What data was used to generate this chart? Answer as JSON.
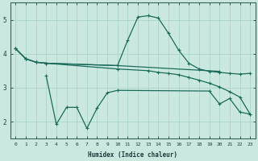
{
  "xlabel": "Humidex (Indice chaleur)",
  "background_color": "#cbe8e0",
  "grid_color": "#a8d5c8",
  "line_color": "#1a6b5a",
  "xlim": [
    -0.5,
    23.5
  ],
  "ylim": [
    1.5,
    5.5
  ],
  "yticks": [
    2,
    3,
    4,
    5
  ],
  "xticks": [
    0,
    1,
    2,
    3,
    4,
    5,
    6,
    7,
    8,
    9,
    10,
    11,
    12,
    13,
    14,
    15,
    16,
    17,
    18,
    19,
    20,
    21,
    22,
    23
  ],
  "line1_x": [
    0,
    1,
    2,
    3,
    10,
    20
  ],
  "line1_y": [
    4.15,
    3.85,
    3.75,
    3.72,
    3.65,
    3.48
  ],
  "line2_x": [
    0,
    1,
    2,
    3,
    10,
    13,
    14,
    15,
    16,
    17,
    18,
    19,
    20,
    21,
    22,
    23
  ],
  "line2_y": [
    4.15,
    3.85,
    3.75,
    3.72,
    3.55,
    3.5,
    3.45,
    3.42,
    3.38,
    3.3,
    3.22,
    3.13,
    3.02,
    2.88,
    2.72,
    2.22
  ],
  "line3_x": [
    0,
    1,
    2,
    3,
    10,
    11,
    12,
    13,
    14,
    15,
    16,
    17,
    18,
    19,
    20,
    21,
    22,
    23
  ],
  "line3_y": [
    4.15,
    3.85,
    3.75,
    3.72,
    3.65,
    4.4,
    5.08,
    5.12,
    5.05,
    4.6,
    4.1,
    3.72,
    3.55,
    3.48,
    3.45,
    3.42,
    3.4,
    3.42
  ],
  "line4_x": [
    3,
    4,
    5,
    6,
    7,
    8,
    9,
    10,
    19,
    20,
    21,
    22,
    23
  ],
  "line4_y": [
    3.35,
    1.92,
    2.42,
    2.42,
    1.8,
    2.4,
    2.85,
    2.92,
    2.9,
    2.52,
    2.68,
    2.28,
    2.22
  ]
}
